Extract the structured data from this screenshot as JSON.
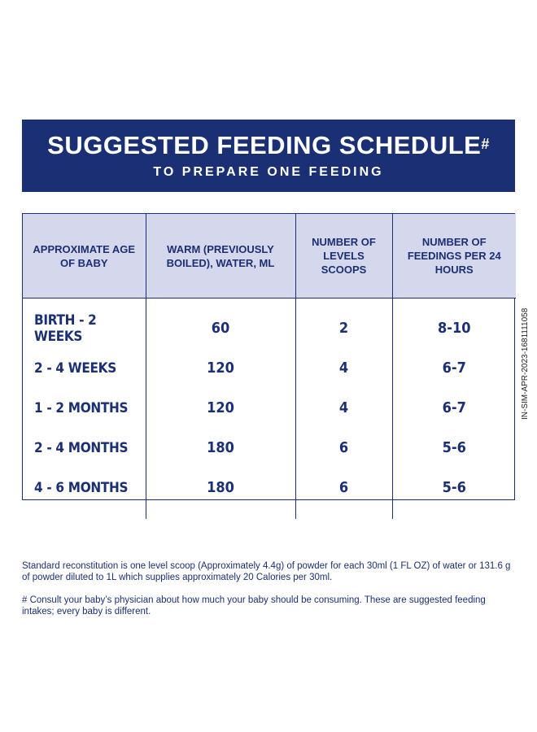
{
  "banner": {
    "title": "SUGGESTED FEEDING SCHEDULE",
    "title_mark": "#",
    "subtitle": "TO PREPARE ONE FEEDING"
  },
  "table": {
    "headers": [
      "APPROXIMATE AGE OF BABY",
      "WARM (PREVIOUSLY BOILED), WATER, ML",
      "NUMBER OF LEVELS SCOOPS",
      "NUMBER OF FEEDINGS PER 24 HOURS"
    ],
    "rows": [
      [
        "BIRTH - 2 WEEKS",
        "60",
        "2",
        "8-10"
      ],
      [
        "2 - 4 WEEKS",
        "120",
        "4",
        "6-7"
      ],
      [
        "1 - 2 MONTHS",
        "120",
        "4",
        "6-7"
      ],
      [
        "2 - 4 MONTHS",
        "180",
        "6",
        "5-6"
      ],
      [
        "4 - 6 MONTHS",
        "180",
        "6",
        "5-6"
      ]
    ]
  },
  "side_code": "IN-SIM-APR-2023-1681111058",
  "notes": [
    "Standard reconstitution is one level scoop (Approximately 4.4g) of powder for each 30ml (1 FL OZ) of water or 131.6 g of powder diluted to 1L which supplies approximately 20 Calories per 30ml.",
    "# Consult your baby’s physician about how much your baby should be consuming. These are suggested feeding intakes; every baby is different."
  ],
  "colors": {
    "brand_navy": "#1b2f74",
    "header_tint": "#d5d8ec"
  }
}
